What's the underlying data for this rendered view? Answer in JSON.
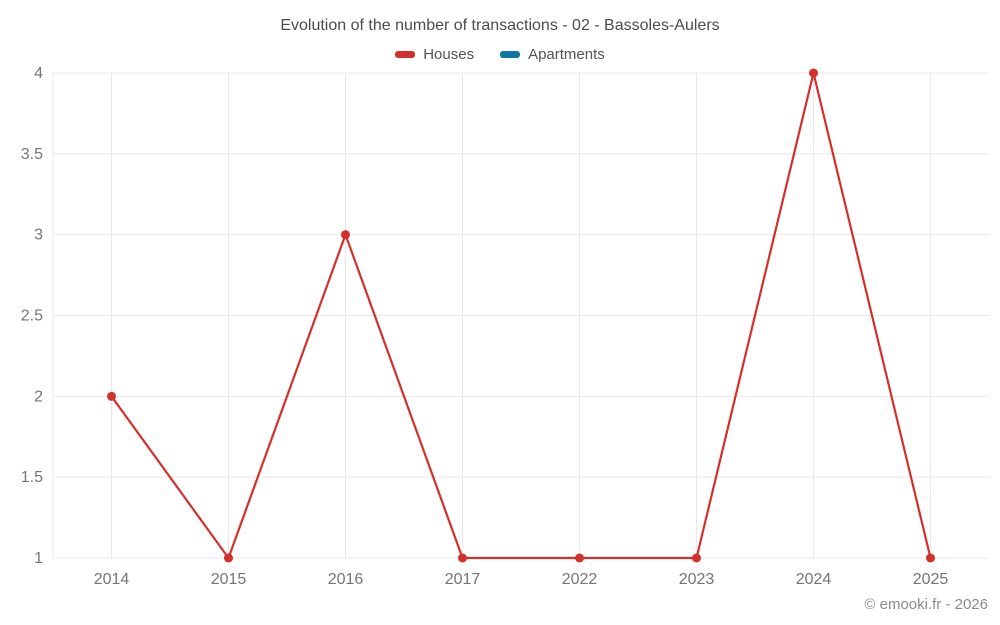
{
  "title": "Evolution of the number of transactions - 02 - Bassoles-Aulers",
  "legend": {
    "items": [
      {
        "label": "Houses",
        "color": "#d3302c"
      },
      {
        "label": "Apartments",
        "color": "#0e73a5"
      }
    ]
  },
  "footer": {
    "credit": "© emooki.fr - 2026"
  },
  "chart_data": {
    "type": "line",
    "title": "Evolution of the number of transactions - 02 - Bassoles-Aulers",
    "categories": [
      "2014",
      "2015",
      "2016",
      "2017",
      "2022",
      "2023",
      "2024",
      "2025"
    ],
    "series": [
      {
        "name": "Houses",
        "color": "#d3302c",
        "values": [
          2,
          1,
          3,
          1,
          1,
          1,
          4,
          1
        ]
      },
      {
        "name": "Apartments",
        "color": "#0e73a5",
        "values": []
      }
    ],
    "xlabel": "",
    "ylabel": "",
    "ylim": [
      1,
      4
    ],
    "yticks": [
      1,
      1.5,
      2,
      2.5,
      3,
      3.5,
      4
    ],
    "ytick_labels": [
      "1",
      "1.5",
      "2",
      "2.5",
      "3",
      "3.5",
      "4"
    ],
    "grid": true,
    "legend_position": "top",
    "marker": "circle"
  },
  "style": {
    "grid_color": "#e8e8e8",
    "tick_color": "#757575",
    "line_width": 2.2,
    "marker_radius": 4.5
  }
}
